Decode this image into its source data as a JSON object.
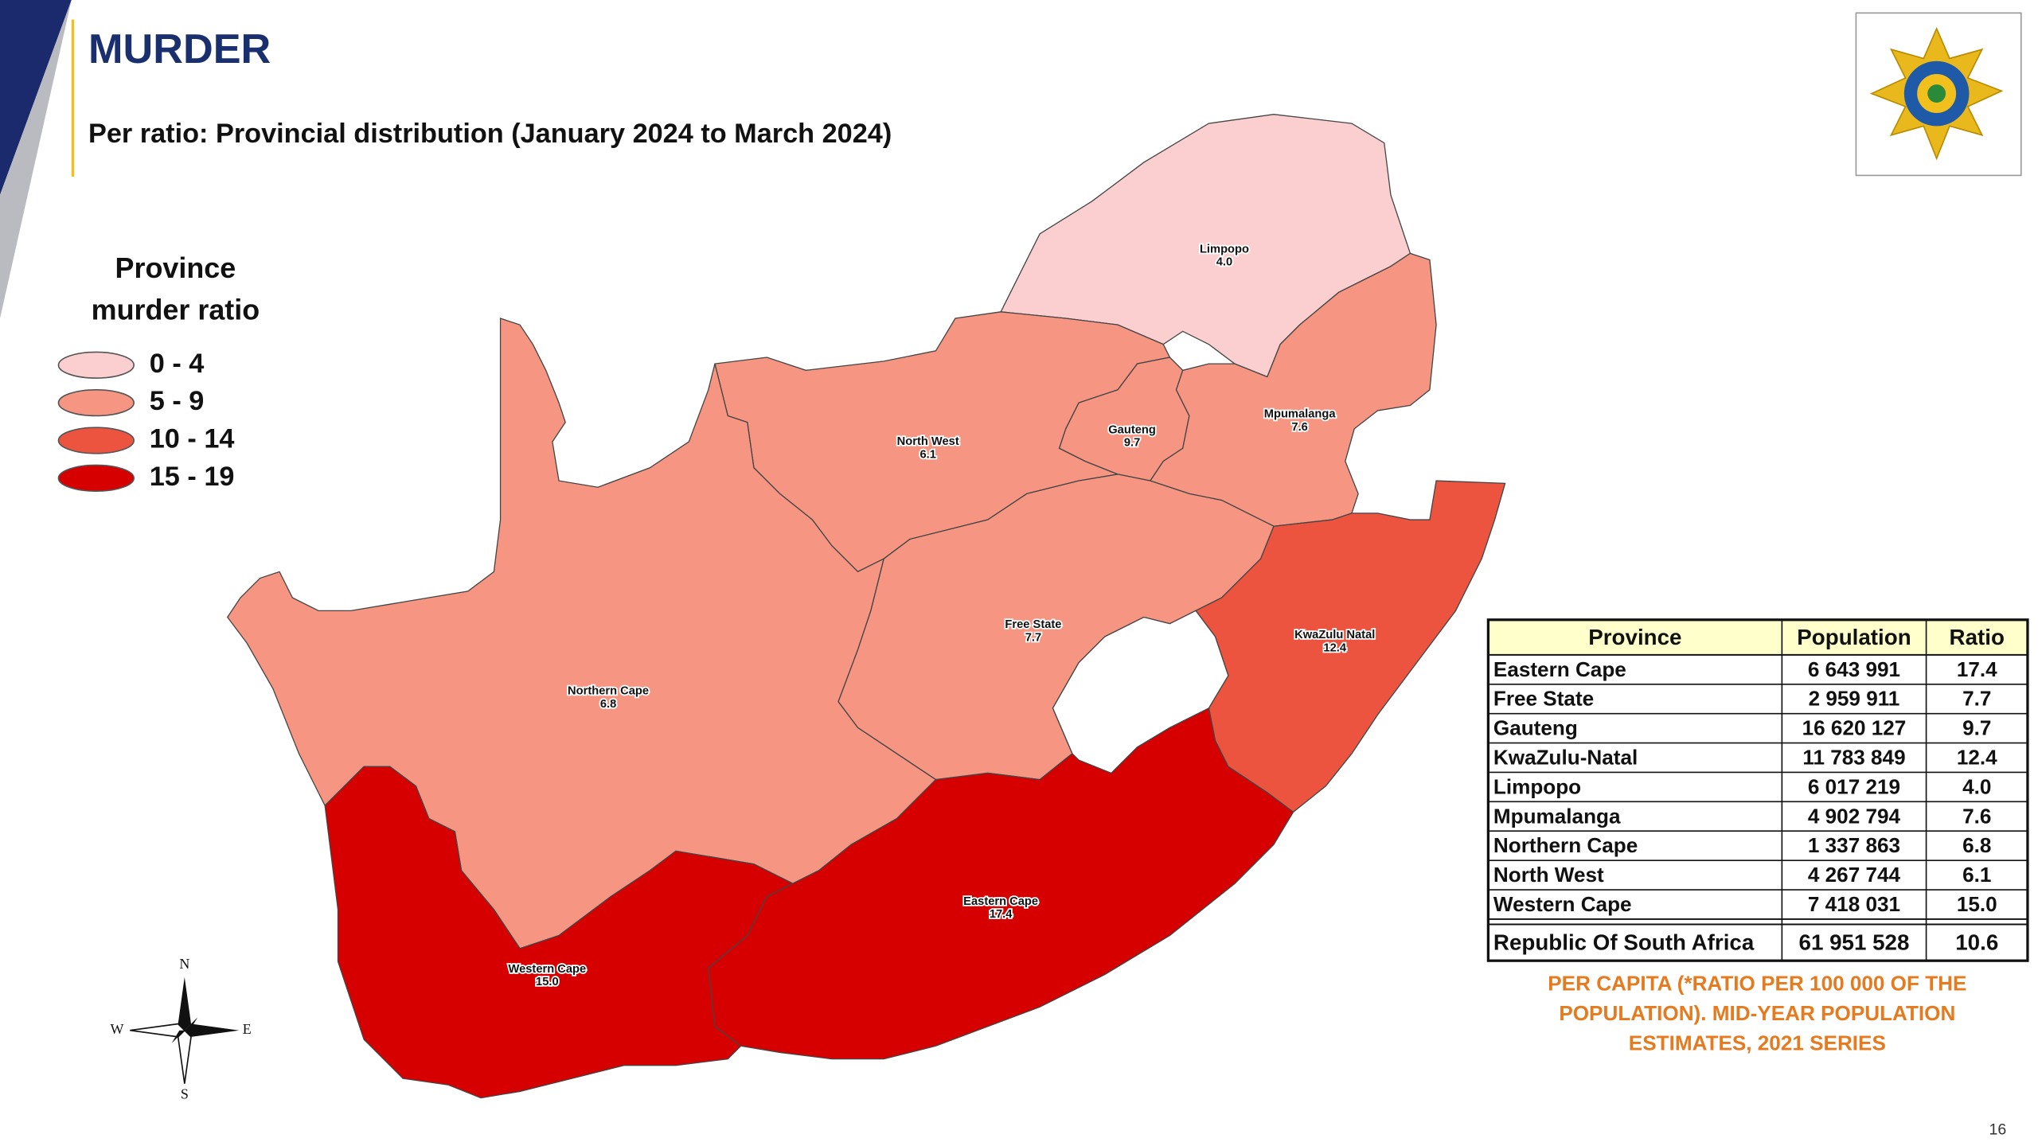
{
  "header": {
    "title": "MURDER",
    "subtitle": "Per ratio: Provincial distribution (January 2024 to March 2024)"
  },
  "legend": {
    "title_lines": [
      "Province",
      "murder ratio"
    ],
    "items": [
      {
        "label": "0 - 4",
        "color": "#fbcfcf"
      },
      {
        "label": "5 - 9",
        "color": "#f69682"
      },
      {
        "label": "10 - 14",
        "color": "#ec5440"
      },
      {
        "label": "15 - 19",
        "color": "#d70000"
      }
    ]
  },
  "map": {
    "regions": [
      {
        "name": "Limpopo",
        "value": "4.0",
        "color": "#fbcfcf"
      },
      {
        "name": "North West",
        "value": "6.1",
        "color": "#f69682"
      },
      {
        "name": "Gauteng",
        "value": "9.7",
        "color": "#f69682"
      },
      {
        "name": "Mpumalanga",
        "value": "7.6",
        "color": "#f69682"
      },
      {
        "name": "Northern Cape",
        "value": "6.8",
        "color": "#f69682"
      },
      {
        "name": "Free State",
        "value": "7.7",
        "color": "#f69682"
      },
      {
        "name": "KwaZulu Natal",
        "value": "12.4",
        "color": "#ec5440"
      },
      {
        "name": "Eastern Cape",
        "value": "17.4",
        "color": "#d70000"
      },
      {
        "name": "Western Cape",
        "value": "15.0",
        "color": "#d70000"
      }
    ],
    "compass": {
      "n": "N",
      "e": "E",
      "s": "S",
      "w": "W"
    }
  },
  "table": {
    "columns": [
      "Province",
      "Population",
      "Ratio"
    ],
    "rows": [
      [
        "Eastern Cape",
        "6 643 991",
        "17.4"
      ],
      [
        "Free State",
        "2 959 911",
        "7.7"
      ],
      [
        "Gauteng",
        "16 620 127",
        "9.7"
      ],
      [
        "KwaZulu-Natal",
        "11 783 849",
        "12.4"
      ],
      [
        "Limpopo",
        "6 017 219",
        "4.0"
      ],
      [
        "Mpumalanga",
        "4 902 794",
        "7.6"
      ],
      [
        "Northern Cape",
        "1 337 863",
        "6.8"
      ],
      [
        "North West",
        "4 267 744",
        "6.1"
      ],
      [
        "Western Cape",
        "7 418 031",
        "15.0"
      ]
    ],
    "total": [
      "Republic Of South Africa",
      "61 951 528",
      "10.6"
    ]
  },
  "footnote": {
    "lines": [
      "PER CAPITA (*RATIO PER 100 000 OF THE",
      "POPULATION). MID-YEAR POPULATION",
      "ESTIMATES, 2021 SERIES"
    ]
  },
  "page_number": "16"
}
